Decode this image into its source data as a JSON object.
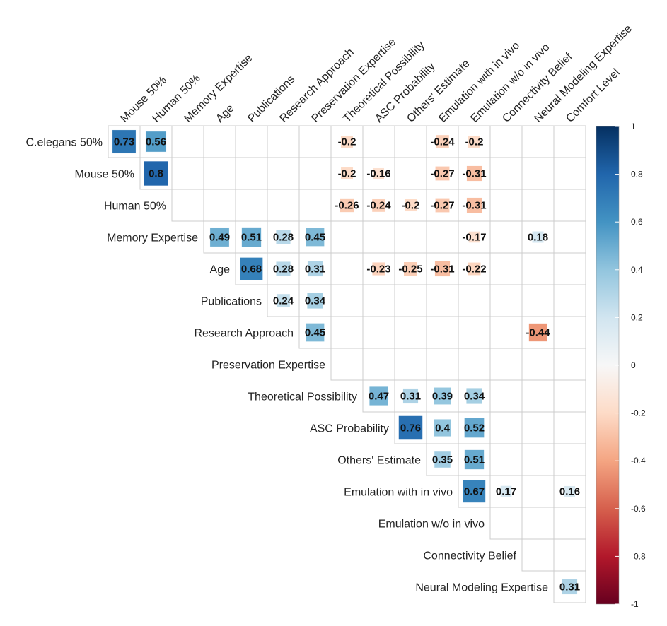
{
  "chart_data": {
    "type": "heatmap",
    "subtype": "upper-triangle correlation matrix",
    "rows": [
      "C.elegans 50%",
      "Mouse 50%",
      "Human 50%",
      "Memory Expertise",
      "Age",
      "Publications",
      "Research Approach",
      "Preservation Expertise",
      "Theoretical Possibility",
      "ASC Probability",
      "Others' Estimate",
      "Emulation with in vivo",
      "Emulation w/o in vivo",
      "Connectivity Belief",
      "Neural Modeling Expertise"
    ],
    "columns": [
      "Mouse 50%",
      "Human 50%",
      "Memory Expertise",
      "Age",
      "Publications",
      "Research Approach",
      "Preservation Expertise",
      "Theoretical Possibility",
      "ASC Probability",
      "Others' Estimate",
      "Emulation with in vivo",
      "Emulation w/o in vivo",
      "Connectivity Belief",
      "Neural Modeling Expertise",
      "Comfort Level"
    ],
    "values": [
      [
        0.73,
        0.56,
        null,
        null,
        null,
        null,
        null,
        -0.2,
        null,
        null,
        -0.24,
        -0.2,
        null,
        null,
        null
      ],
      [
        null,
        0.8,
        null,
        null,
        null,
        null,
        null,
        -0.2,
        -0.16,
        null,
        -0.27,
        -0.31,
        null,
        null,
        null
      ],
      [
        null,
        null,
        null,
        null,
        null,
        null,
        null,
        -0.26,
        -0.24,
        -0.2,
        -0.27,
        -0.31,
        null,
        null,
        null
      ],
      [
        null,
        null,
        null,
        0.49,
        0.51,
        0.28,
        0.45,
        null,
        null,
        null,
        null,
        -0.17,
        null,
        0.18,
        null
      ],
      [
        null,
        null,
        null,
        null,
        0.68,
        0.28,
        0.31,
        null,
        -0.23,
        -0.25,
        -0.31,
        -0.22,
        null,
        null,
        null
      ],
      [
        null,
        null,
        null,
        null,
        null,
        0.24,
        0.34,
        null,
        null,
        null,
        null,
        null,
        null,
        null,
        null
      ],
      [
        null,
        null,
        null,
        null,
        null,
        null,
        0.45,
        null,
        null,
        null,
        null,
        null,
        null,
        -0.44,
        null
      ],
      [
        null,
        null,
        null,
        null,
        null,
        null,
        null,
        null,
        null,
        null,
        null,
        null,
        null,
        null,
        null
      ],
      [
        null,
        null,
        null,
        null,
        null,
        null,
        null,
        null,
        0.47,
        0.31,
        0.39,
        0.34,
        null,
        null,
        null
      ],
      [
        null,
        null,
        null,
        null,
        null,
        null,
        null,
        null,
        null,
        0.76,
        0.4,
        0.52,
        null,
        null,
        null
      ],
      [
        null,
        null,
        null,
        null,
        null,
        null,
        null,
        null,
        null,
        null,
        0.35,
        0.51,
        null,
        null,
        null
      ],
      [
        null,
        null,
        null,
        null,
        null,
        null,
        null,
        null,
        null,
        null,
        null,
        0.67,
        0.17,
        null,
        0.16
      ],
      [
        null,
        null,
        null,
        null,
        null,
        null,
        null,
        null,
        null,
        null,
        null,
        null,
        null,
        null,
        null
      ],
      [
        null,
        null,
        null,
        null,
        null,
        null,
        null,
        null,
        null,
        null,
        null,
        null,
        null,
        null,
        null
      ],
      [
        null,
        null,
        null,
        null,
        null,
        null,
        null,
        null,
        null,
        null,
        null,
        null,
        null,
        null,
        0.31
      ]
    ],
    "value_range": [
      -1,
      1
    ],
    "colorbar": {
      "ticks": [
        "1",
        "0.8",
        "0.6",
        "0.4",
        "0.2",
        "0",
        "-0.2",
        "-0.4",
        "-0.6",
        "-0.8",
        "-1"
      ],
      "tick_values": [
        1,
        0.8,
        0.6,
        0.4,
        0.2,
        0,
        -0.2,
        -0.4,
        -0.6,
        -0.8,
        -1
      ],
      "colors_high_to_low": [
        "#053061",
        "#2166ac",
        "#4393c3",
        "#92c5de",
        "#d1e5f0",
        "#f7f7f7",
        "#fddbc7",
        "#f4a582",
        "#d6604d",
        "#b2182b",
        "#67001f"
      ]
    },
    "legend": "right",
    "grid": true
  }
}
